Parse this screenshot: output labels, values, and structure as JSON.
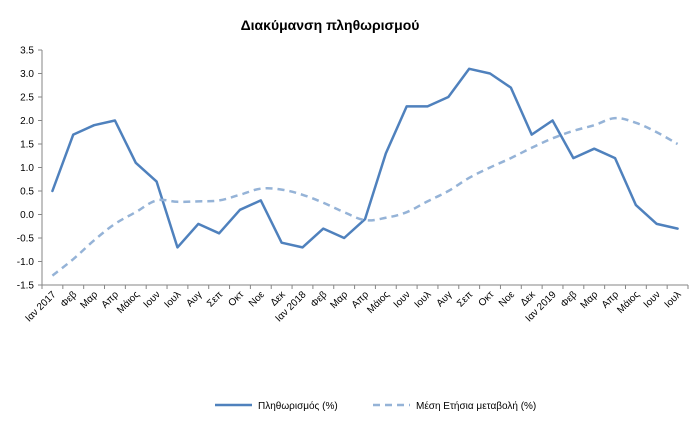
{
  "chart_data": {
    "type": "line",
    "title": "Διακύμανση πληθωρισμού",
    "xlabel": "",
    "ylabel": "",
    "ylim": [
      -1.5,
      3.5
    ],
    "yticks": [
      "3.5",
      "3.0",
      "2.5",
      "2.0",
      "1.5",
      "1.0",
      "0.5",
      "0.0",
      "-0.5",
      "-1.0",
      "-1.5"
    ],
    "grid": false,
    "legend_position": "bottom",
    "categories": [
      "Ιαν 2017",
      "Φεβ",
      "Μαρ",
      "Απρ",
      "Μάιος",
      "Ιουν",
      "Ιουλ",
      "Αυγ",
      "Σεπ",
      "Οκτ",
      "Νοε",
      "Δεκ",
      "Ιαν 2018",
      "Φεβ",
      "Μαρ",
      "Απρ",
      "Μάιος",
      "Ιουν",
      "Ιουλ",
      "Αυγ",
      "Σεπ",
      "Οκτ",
      "Νοε",
      "Δεκ",
      "Ιαν 2019",
      "Φεβ",
      "Μαρ",
      "Απρ",
      "Μάιος",
      "Ιουν",
      "Ιουλ"
    ],
    "series": [
      {
        "name": "Πληθωρισμός (%)",
        "style": "solid",
        "color": "#4f81bd",
        "values": [
          0.5,
          1.7,
          1.9,
          2.0,
          1.1,
          0.7,
          -0.7,
          -0.2,
          -0.4,
          0.1,
          0.3,
          -0.6,
          -0.7,
          -0.3,
          -0.5,
          -0.1,
          1.3,
          2.3,
          2.3,
          2.5,
          3.1,
          3.0,
          2.7,
          1.7,
          2.0,
          1.2,
          1.4,
          1.2,
          0.2,
          -0.2,
          -0.3
        ]
      },
      {
        "name": "Μέση Ετήσια μεταβολή (%)",
        "style": "dashed",
        "color": "#95b3d7",
        "values": [
          -1.3,
          -0.95,
          -0.55,
          -0.2,
          0.05,
          0.3,
          0.27,
          0.28,
          0.3,
          0.42,
          0.55,
          0.53,
          0.42,
          0.25,
          0.05,
          -0.12,
          -0.07,
          0.05,
          0.28,
          0.5,
          0.78,
          1.0,
          1.2,
          1.42,
          1.62,
          1.78,
          1.9,
          2.05,
          1.95,
          1.75,
          1.5
        ]
      }
    ]
  }
}
